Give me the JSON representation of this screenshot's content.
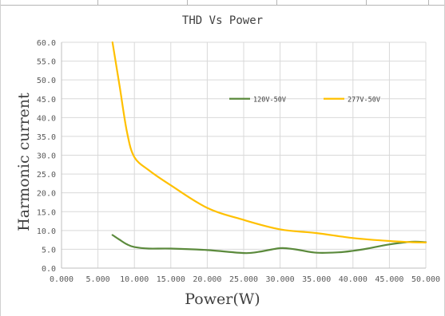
{
  "chart_data": {
    "type": "line",
    "title": "THD Vs Power",
    "xlabel": "Power(W)",
    "ylabel": "Harmonic current",
    "xlim": [
      0,
      50
    ],
    "ylim": [
      0,
      60
    ],
    "x_ticks": [
      "0.000",
      "5.000",
      "10.000",
      "15.000",
      "20.000",
      "25.000",
      "30.000",
      "35.000",
      "40.000",
      "45.000",
      "50.000"
    ],
    "y_ticks": [
      "0.0",
      "5.0",
      "10.0",
      "15.0",
      "20.0",
      "25.0",
      "30.0",
      "35.0",
      "40.0",
      "45.0",
      "50.0",
      "55.0",
      "60.0"
    ],
    "grid": true,
    "legend_position": "top-right",
    "series": [
      {
        "name": "120V-50V",
        "color": "#5b8a3c",
        "x": [
          7,
          8,
          9,
          10,
          12,
          15,
          20,
          25,
          27,
          30,
          32,
          35,
          38,
          40,
          42,
          45,
          48,
          50
        ],
        "y": [
          8.8,
          7.5,
          6.3,
          5.6,
          5.2,
          5.2,
          4.8,
          4.0,
          4.3,
          5.3,
          5.0,
          4.1,
          4.2,
          4.6,
          5.2,
          6.3,
          7.0,
          6.9
        ]
      },
      {
        "name": "277V-50V",
        "color": "#ffc000",
        "x": [
          7,
          8,
          9,
          10,
          12,
          15,
          20,
          25,
          30,
          35,
          40,
          45,
          48,
          50
        ],
        "y": [
          60,
          48,
          36,
          29.5,
          26,
          22,
          16,
          12.8,
          10.3,
          9.3,
          8,
          7.2,
          6.9,
          6.8
        ]
      }
    ]
  }
}
